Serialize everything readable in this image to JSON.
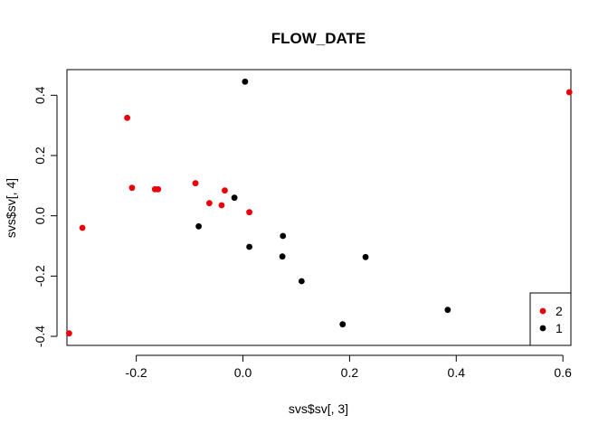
{
  "chart_data": {
    "type": "scatter",
    "title": "FLOW_DATE",
    "xlabel": "svs$sv[, 3]",
    "ylabel": "svs$sv[, 4]",
    "xlim": [
      -0.33,
      0.615
    ],
    "ylim": [
      -0.43,
      0.485
    ],
    "xticks": [
      -0.2,
      0.0,
      0.2,
      0.4,
      0.6
    ],
    "xtick_labels": [
      "-0.2",
      "0.0",
      "0.2",
      "0.4",
      "0.6"
    ],
    "yticks": [
      -0.4,
      -0.2,
      0.0,
      0.2,
      0.4
    ],
    "ytick_labels": [
      "-0.4",
      "-0.2",
      "0.0",
      "0.2",
      "0.4"
    ],
    "grid": false,
    "legend_position": "bottom-right",
    "series": [
      {
        "name": "2",
        "color": "#e8000b",
        "points": [
          {
            "x": -0.326,
            "y": -0.39
          },
          {
            "x": -0.301,
            "y": -0.04
          },
          {
            "x": -0.217,
            "y": 0.325
          },
          {
            "x": -0.208,
            "y": 0.093
          },
          {
            "x": -0.165,
            "y": 0.088
          },
          {
            "x": -0.159,
            "y": 0.088
          },
          {
            "x": -0.089,
            "y": 0.108
          },
          {
            "x": -0.063,
            "y": 0.042
          },
          {
            "x": -0.04,
            "y": 0.035
          },
          {
            "x": -0.034,
            "y": 0.084
          },
          {
            "x": 0.012,
            "y": 0.012
          },
          {
            "x": 0.612,
            "y": 0.41
          }
        ]
      },
      {
        "name": "1",
        "color": "#000000",
        "points": [
          {
            "x": 0.004,
            "y": 0.445
          },
          {
            "x": -0.083,
            "y": -0.035
          },
          {
            "x": -0.016,
            "y": 0.06
          },
          {
            "x": 0.012,
            "y": -0.103
          },
          {
            "x": 0.075,
            "y": -0.067
          },
          {
            "x": 0.074,
            "y": -0.135
          },
          {
            "x": 0.11,
            "y": -0.217
          },
          {
            "x": 0.187,
            "y": -0.36
          },
          {
            "x": 0.23,
            "y": -0.137
          },
          {
            "x": 0.384,
            "y": -0.312
          }
        ]
      }
    ]
  }
}
